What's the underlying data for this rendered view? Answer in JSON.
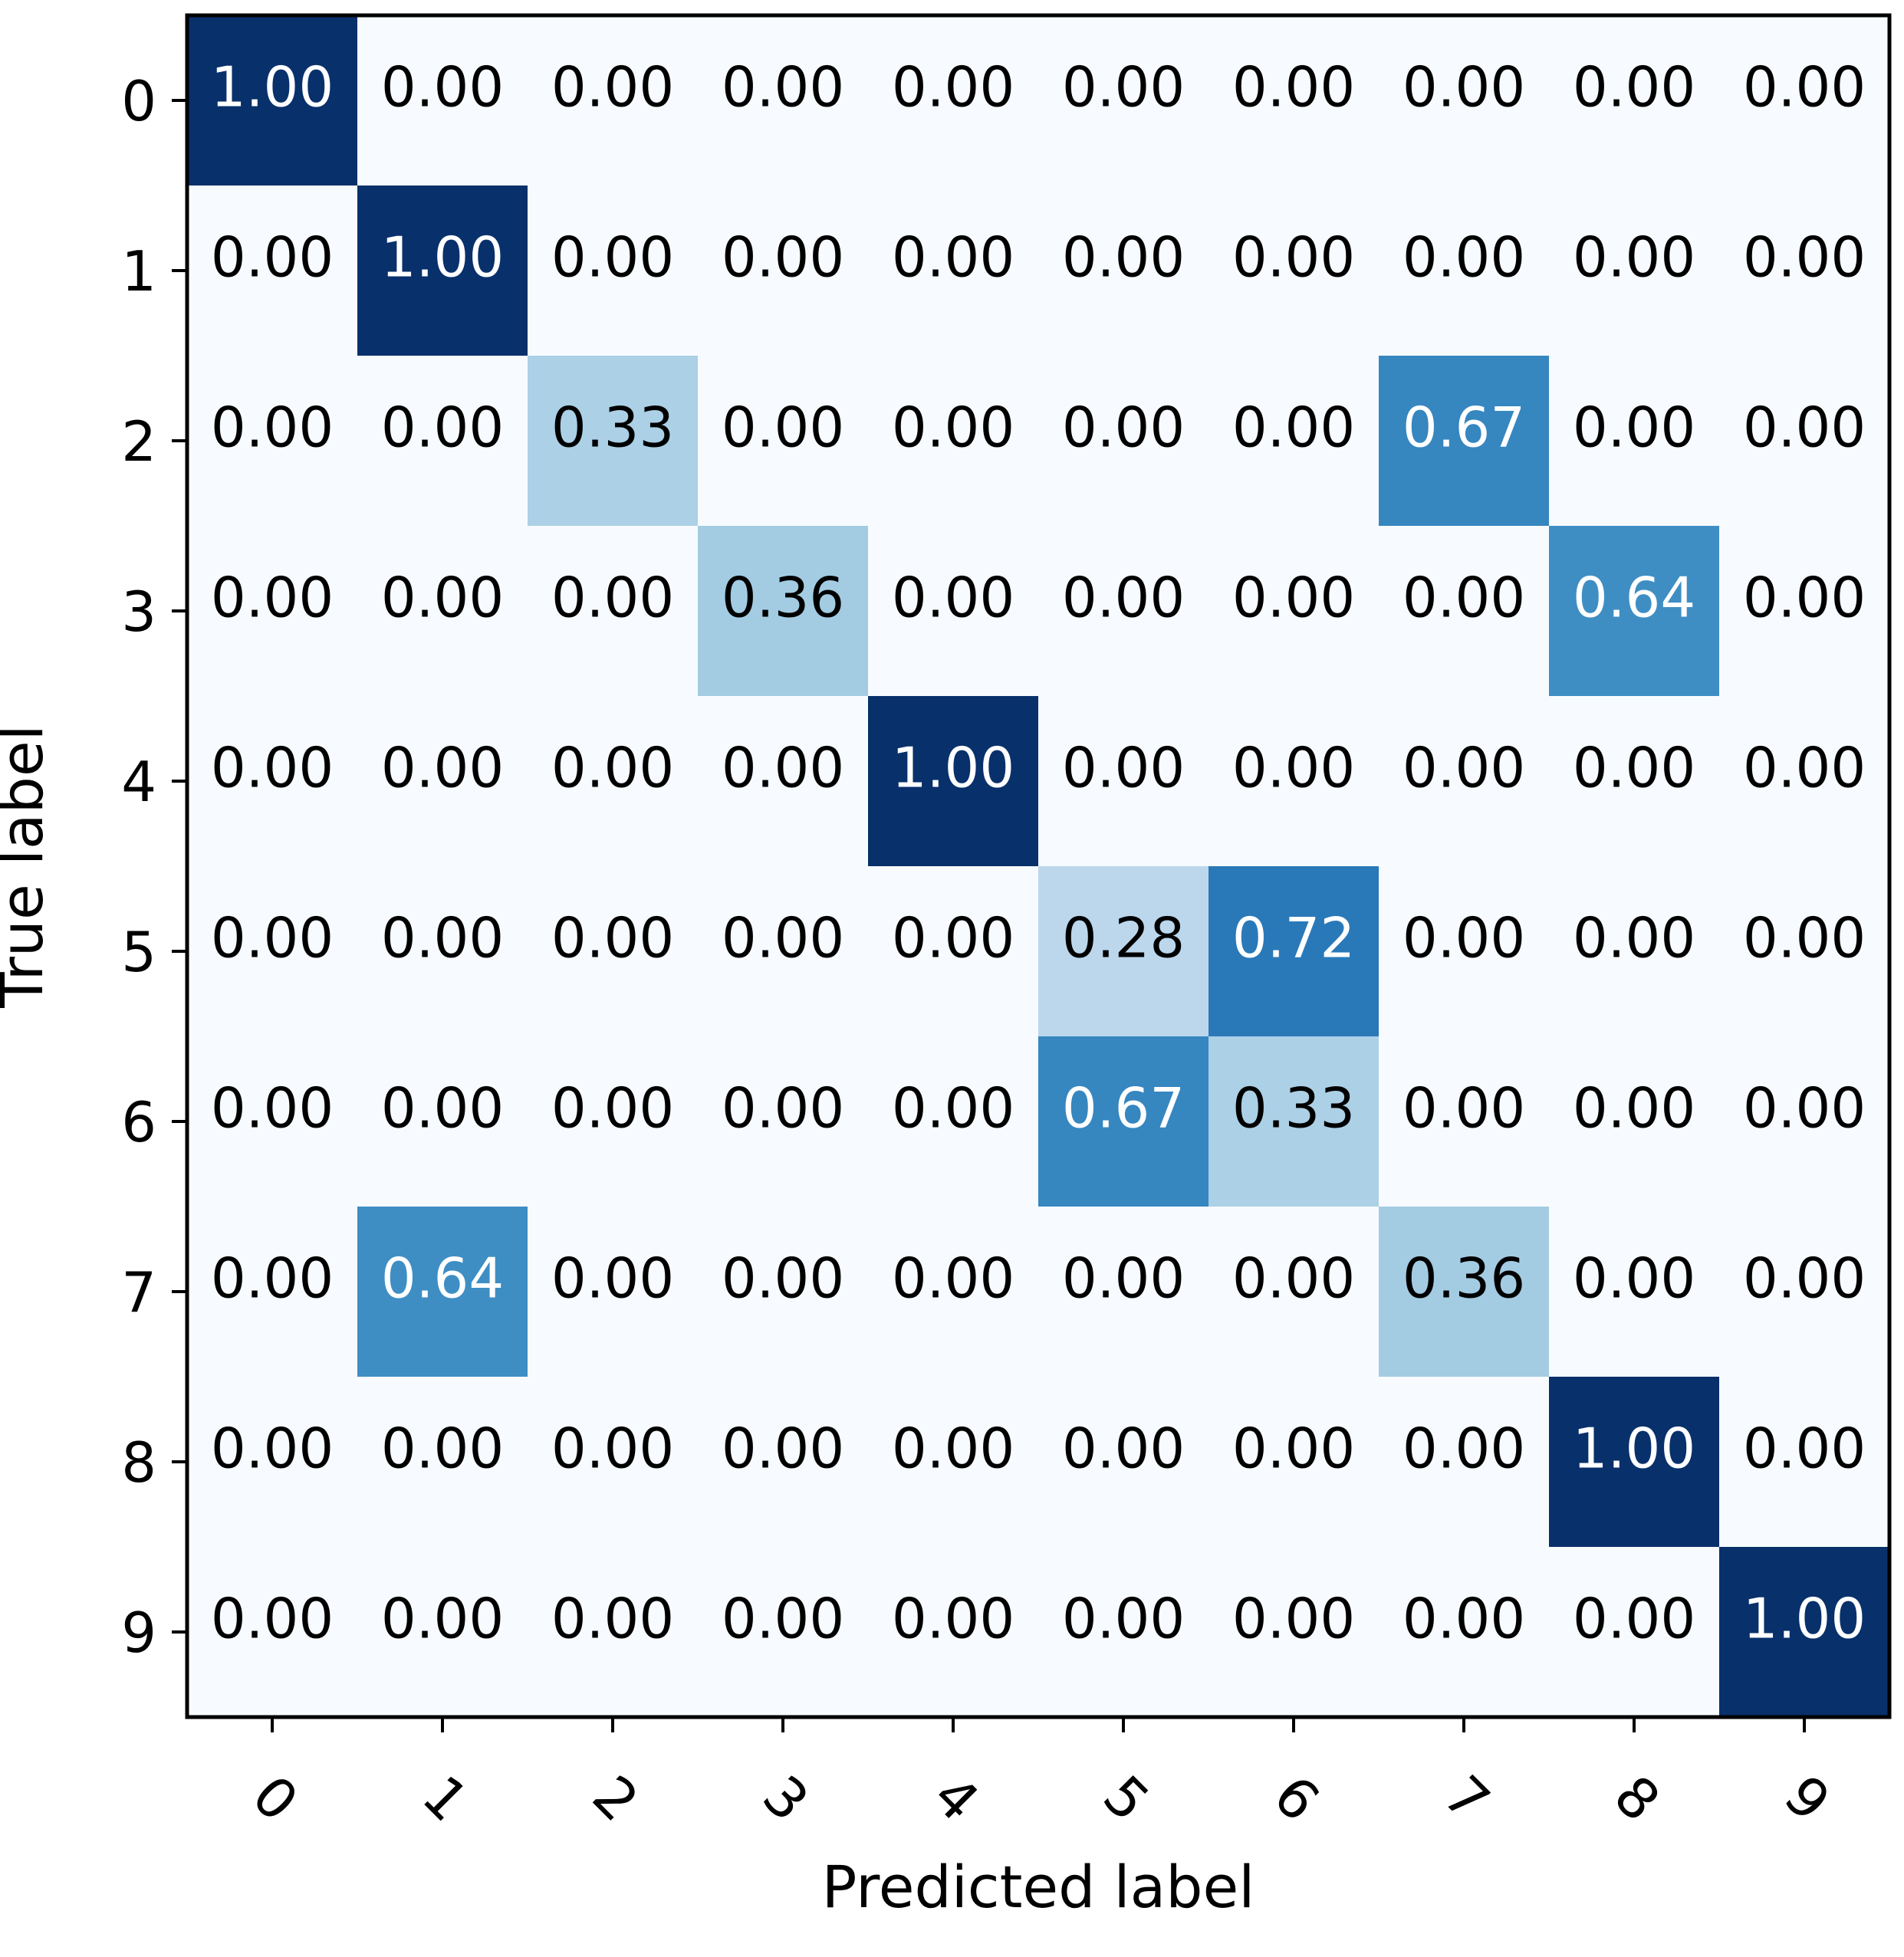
{
  "chart_data": {
    "type": "heatmap",
    "xlabel": "Predicted label",
    "ylabel": "True label",
    "x_categories": [
      "0",
      "1",
      "2",
      "3",
      "4",
      "5",
      "6",
      "7",
      "8",
      "9"
    ],
    "y_categories": [
      "0",
      "1",
      "2",
      "3",
      "4",
      "5",
      "6",
      "7",
      "8",
      "9"
    ],
    "values": [
      [
        1.0,
        0.0,
        0.0,
        0.0,
        0.0,
        0.0,
        0.0,
        0.0,
        0.0,
        0.0
      ],
      [
        0.0,
        1.0,
        0.0,
        0.0,
        0.0,
        0.0,
        0.0,
        0.0,
        0.0,
        0.0
      ],
      [
        0.0,
        0.0,
        0.33,
        0.0,
        0.0,
        0.0,
        0.0,
        0.67,
        0.0,
        0.0
      ],
      [
        0.0,
        0.0,
        0.0,
        0.36,
        0.0,
        0.0,
        0.0,
        0.0,
        0.64,
        0.0
      ],
      [
        0.0,
        0.0,
        0.0,
        0.0,
        1.0,
        0.0,
        0.0,
        0.0,
        0.0,
        0.0
      ],
      [
        0.0,
        0.0,
        0.0,
        0.0,
        0.0,
        0.28,
        0.72,
        0.0,
        0.0,
        0.0
      ],
      [
        0.0,
        0.0,
        0.0,
        0.0,
        0.0,
        0.67,
        0.33,
        0.0,
        0.0,
        0.0
      ],
      [
        0.0,
        0.64,
        0.0,
        0.0,
        0.0,
        0.0,
        0.0,
        0.36,
        0.0,
        0.0
      ],
      [
        0.0,
        0.0,
        0.0,
        0.0,
        0.0,
        0.0,
        0.0,
        0.0,
        1.0,
        0.0
      ],
      [
        0.0,
        0.0,
        0.0,
        0.0,
        0.0,
        0.0,
        0.0,
        0.0,
        0.0,
        1.0
      ]
    ],
    "value_format": "0.00",
    "colormap": "Blues",
    "vmin": 0,
    "vmax": 1,
    "x_tick_rotation_deg": 45,
    "grid": false,
    "colorbar": false
  }
}
